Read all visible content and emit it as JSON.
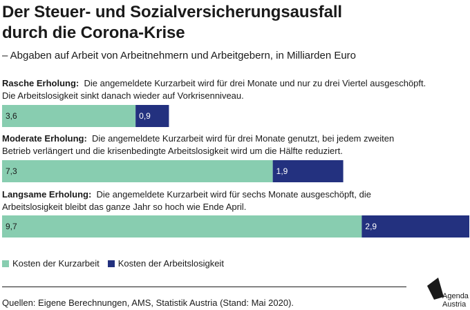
{
  "title_line1": "Der Steuer- und Sozialversicherungsausfall",
  "title_line2": "durch die Corona-Krise",
  "subtitle": "– Abgaben auf Arbeit von Arbeitnehmern und Arbeitgebern, in Milliarden Euro",
  "scenarios": [
    {
      "label": "Rasche Erholung:",
      "desc_line1": "Die angemeldete Kurzarbeit wird für drei Monate und nur zu drei Viertel ausgeschöpft.",
      "desc_line2": "Die Arbeitslosigkeit sinkt danach wieder auf Vorkrisenniveau."
    },
    {
      "label": "Moderate Erholung:",
      "desc_line1": "Die angemeldete Kurzarbeit wird für drei Monate genutzt, bei jedem zweiten",
      "desc_line2": "Betrieb verlängert und die krisenbedingte Arbeitslosigkeit wird um die Hälfte reduziert."
    },
    {
      "label": "Langsame Erholung:",
      "desc_line1": "Die angemeldete Kurzarbeit wird für sechs Monate ausgeschöpft, die",
      "desc_line2": "Arbeitslosigkeit bleibt das ganze Jahr so hoch wie Ende April."
    }
  ],
  "chart_data": {
    "type": "bar",
    "orientation": "horizontal",
    "stacked": true,
    "categories": [
      "Rasche Erholung",
      "Moderate Erholung",
      "Langsame Erholung"
    ],
    "series": [
      {
        "name": "Kosten der Kurzarbeit",
        "values": [
          3.6,
          7.3,
          9.7
        ],
        "labels": [
          "3,6",
          "7,3",
          "9,7"
        ],
        "color": "#88cdb0"
      },
      {
        "name": "Kosten der Arbeitslosigkeit",
        "values": [
          0.9,
          1.9,
          2.9
        ],
        "labels": [
          "0,9",
          "1,9",
          "2,9"
        ],
        "color": "#23317f"
      }
    ],
    "xlim": [
      0,
      12.6
    ],
    "grid": false,
    "legend_position": "bottom-left"
  },
  "legend": [
    {
      "label": "Kosten der Kurzarbeit",
      "color": "#88cdb0"
    },
    {
      "label": "Kosten der Arbeitslosigkeit",
      "color": "#23317f"
    }
  ],
  "source": "Quellen: Eigene Berechnungen, AMS, Statistik Austria (Stand: Mai 2020).",
  "logo": {
    "line1": "Agenda",
    "line2": "Austria",
    "icon": "agenda-austria-logo"
  }
}
